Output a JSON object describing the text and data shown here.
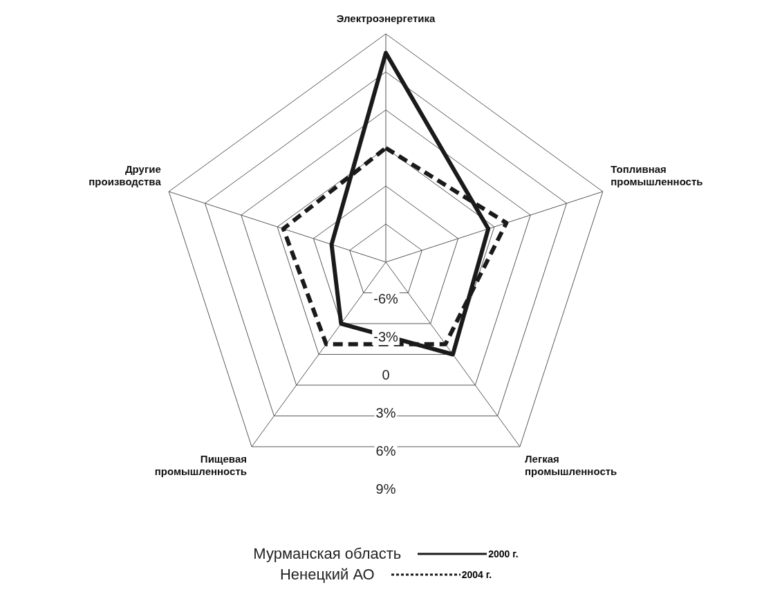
{
  "chart_data": {
    "type": "radar",
    "categories": [
      "Электроэнергетика",
      "Топливная промышленность",
      "Легкая промышленность",
      "Пищевая промышленность",
      "Другие производства"
    ],
    "series": [
      {
        "name": "Мурманская область",
        "color": "#1a1a1a",
        "values": [
          7.5,
          -0.5,
          0,
          -3,
          -4.5
        ],
        "line_style": "solid"
      },
      {
        "name": "Ненецкий АО",
        "color": "#1a1a1a",
        "values": [
          0,
          1,
          -1,
          -1,
          -0.5
        ],
        "line_style": "dashed"
      }
    ],
    "ylim": [
      -9,
      9
    ],
    "yticks": [
      {
        "value": -6,
        "label": "-6%"
      },
      {
        "value": -3,
        "label": "-3%"
      },
      0,
      {
        "value": 3,
        "label": "3%"
      },
      {
        "value": 6,
        "label": "6%"
      },
      {
        "value": 9,
        "label": "9%"
      }
    ],
    "grid": true,
    "marker": "none",
    "legend": "bottom",
    "annotations": [
      "2000 г.",
      "2004 г."
    ]
  }
}
